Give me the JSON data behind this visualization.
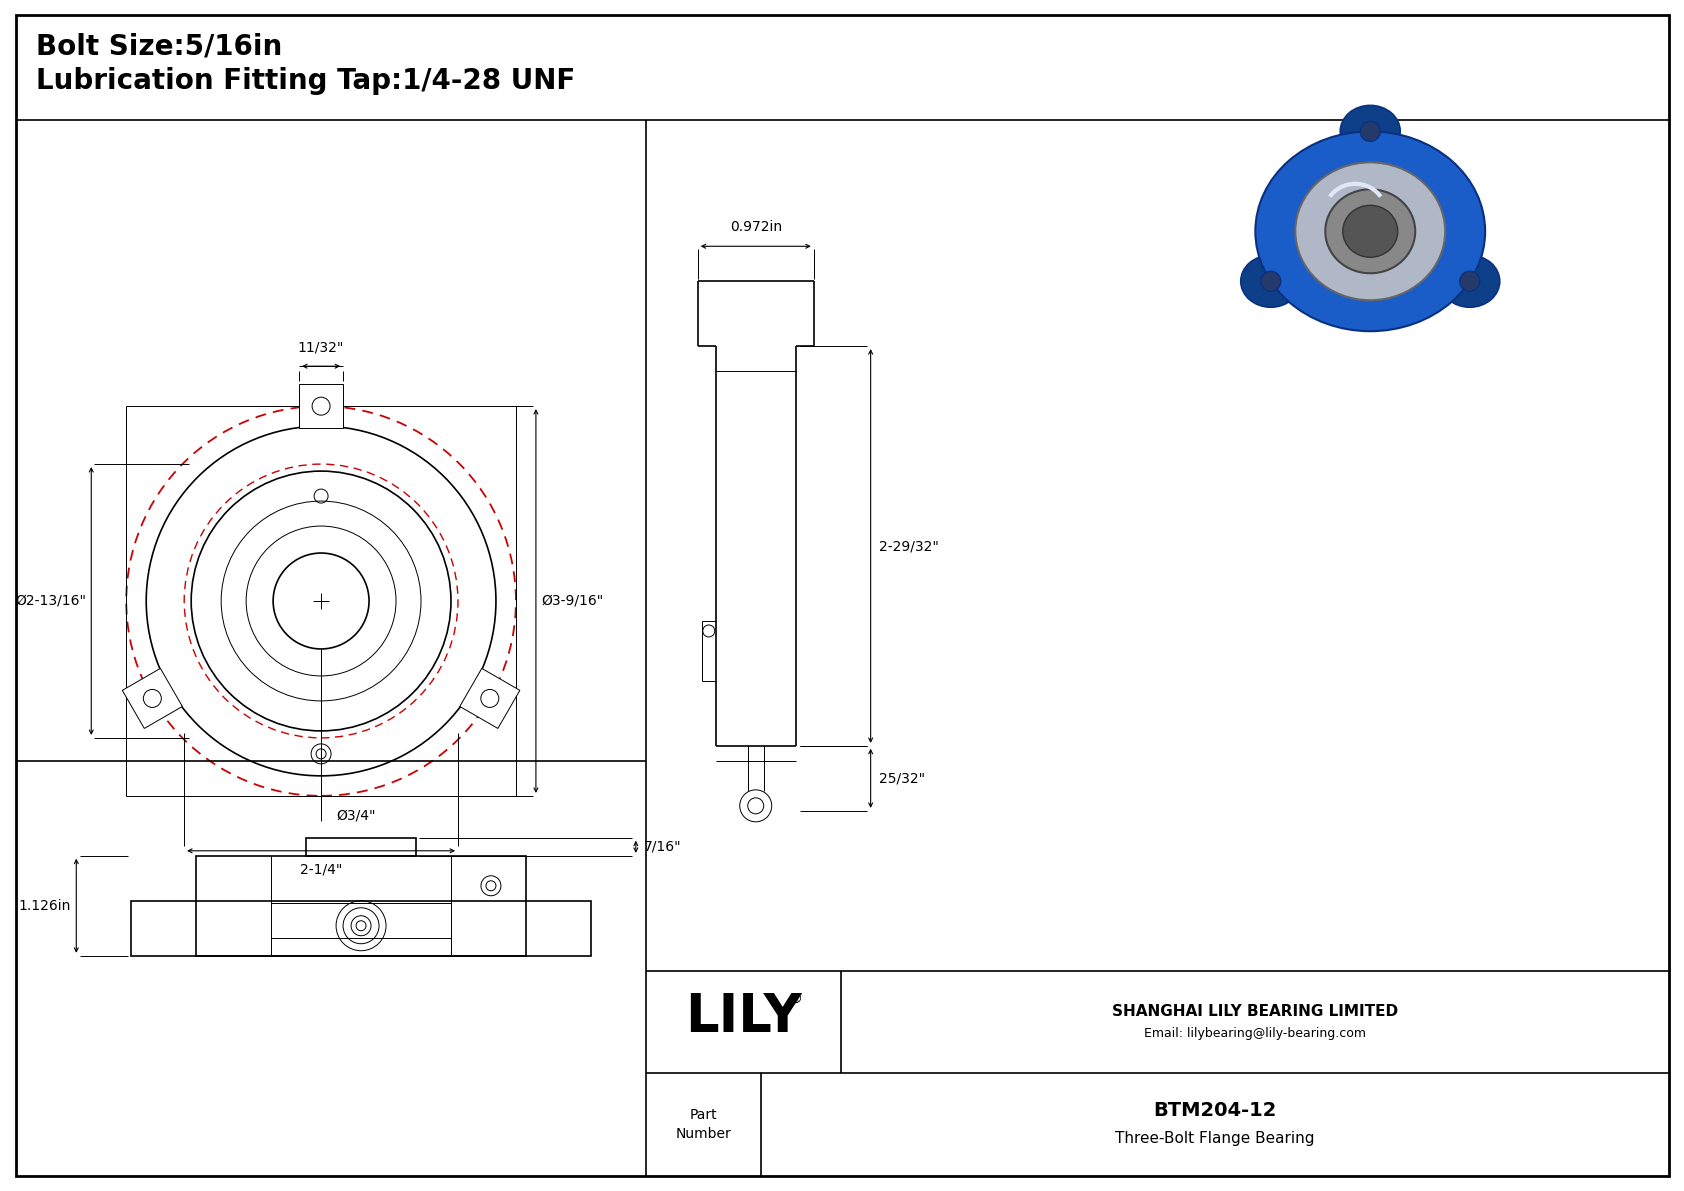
{
  "title_line1": "Bolt Size:5/16in",
  "title_line2": "Lubrication Fitting Tap:1/4-28 UNF",
  "bg_color": "#ffffff",
  "line_color": "#000000",
  "red_color": "#cc0000",
  "company_name": "SHANGHAI LILY BEARING LIMITED",
  "company_email": "Email: lilybearing@lily-bearing.com",
  "part_label": "Part\nNumber",
  "part_number": "BTM204-12",
  "part_description": "Three-Bolt Flange Bearing",
  "logo_text": "LILY",
  "dim_1132": "11/32\"",
  "dim_d2_1316": "Ø2-13/16\"",
  "dim_d3_916": "Ø3-9/16\"",
  "dim_d34": "Ø3/4\"",
  "dim_2_14": "2-1/4\"",
  "dim_0972": "0.972in",
  "dim_2_2932": "2-29/32\"",
  "dim_2532": "25/32\"",
  "dim_716": "7/16\"",
  "dim_1126": "1.126in",
  "border_lw": 2.0,
  "main_lw": 1.2,
  "thin_lw": 0.7,
  "fontsize_title": 20,
  "fontsize_dim": 10,
  "fontsize_logo": 38,
  "fontsize_company": 11,
  "fontsize_part": 13
}
